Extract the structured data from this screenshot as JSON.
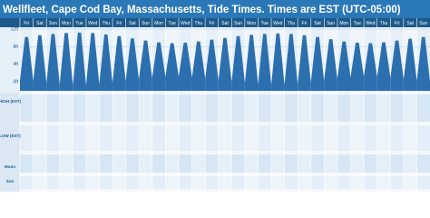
{
  "chart_data": {
    "type": "tide",
    "title": "Wellfleet, Cape Cod Bay, Massachusetts, Tide Times. Times are EST (UTC-05:00)",
    "categories": [
      "Fri",
      "Sat",
      "Sun",
      "Mon",
      "Tue",
      "Wed",
      "Thu",
      "Fri",
      "Sat",
      "Sun",
      "Mon",
      "Tue",
      "Wed",
      "Thu",
      "Fri",
      "Sat",
      "Sun",
      "Mon",
      "Tue",
      "Wed",
      "Thu",
      "Fri",
      "Sat",
      "Sun",
      "Mon",
      "Tue",
      "Wed",
      "Thu",
      "Fri",
      "Sat",
      "Sun"
    ],
    "series": [
      {
        "color": "#2c6fae",
        "values": [
          10.2,
          10.6,
          10.9,
          11.1,
          11.2,
          11.1,
          10.8,
          10.4,
          9.9,
          9.4,
          9.0,
          8.8,
          8.9,
          9.2,
          9.6,
          10.0,
          10.4,
          10.7,
          10.9,
          11.0,
          10.9,
          10.6,
          10.2,
          9.7,
          9.2,
          8.9,
          8.8,
          9.0,
          9.4,
          9.8,
          10.2
        ]
      },
      {
        "color": "#2c6fae",
        "values": [
          0.4,
          0.0,
          -0.4,
          -0.7,
          -0.8,
          -0.7,
          -0.4,
          0.0,
          0.4,
          0.8,
          1.1,
          1.3,
          1.2,
          0.9,
          0.6,
          0.2,
          -0.1,
          -0.4,
          -0.6,
          -0.7,
          -0.6,
          -0.3,
          0.1,
          0.5,
          0.9,
          1.2,
          1.3,
          1.1,
          0.8,
          0.4,
          0.1
        ]
      }
    ],
    "ylim": [
      -2,
      12
    ],
    "yticks": [
      {
        "value": 0,
        "label": "0ft"
      },
      {
        "value": 4,
        "label": "4ft"
      },
      {
        "value": 8,
        "label": "8ft"
      },
      {
        "value": 12,
        "label": "12ft"
      }
    ],
    "row_labels": [
      "HIGH (EST)",
      "LOW (EST)",
      "Moon",
      "Sun"
    ]
  }
}
